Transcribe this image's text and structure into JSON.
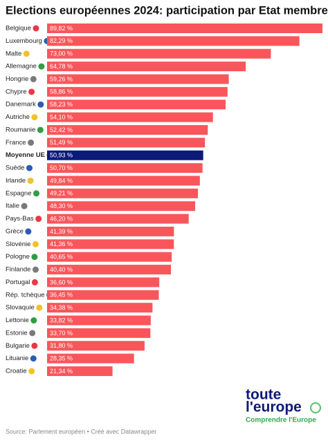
{
  "chart_data": {
    "type": "bar",
    "orientation": "horizontal",
    "title": "Elections européennes 2024: participation par Etat membre",
    "categories": [
      "Belgique",
      "Luxembourg",
      "Malte",
      "Allemagne",
      "Hongrie",
      "Chypre",
      "Danemark",
      "Autriche",
      "Roumanie",
      "France",
      "Moyenne UE",
      "Suède",
      "Irlande",
      "Espagne",
      "Italie",
      "Pays-Bas",
      "Grèce",
      "Slovénie",
      "Pologne",
      "Finlande",
      "Portugal",
      "Rép. tchèque",
      "Slovaquie",
      "Lettonie",
      "Estonie",
      "Bulgarie",
      "Lituanie",
      "Croatie"
    ],
    "values": [
      89.82,
      82.29,
      73.0,
      64.78,
      59.26,
      58.86,
      58.23,
      54.1,
      52.42,
      51.49,
      50.93,
      50.7,
      49.84,
      49.21,
      48.3,
      46.2,
      41.39,
      41.36,
      40.65,
      40.4,
      36.6,
      36.45,
      34.38,
      33.82,
      33.7,
      31.8,
      28.35,
      21.34
    ],
    "value_labels": [
      "89,82 %",
      "82,29 %",
      "73,00 %",
      "64,78 %",
      "59,26 %",
      "58,86 %",
      "58,23 %",
      "54,10 %",
      "52,42 %",
      "51,49 %",
      "50,93 %",
      "50,70 %",
      "49,84 %",
      "49,21 %",
      "48,30 %",
      "46,20 %",
      "41,39 %",
      "41,36 %",
      "40,65 %",
      "40,40 %",
      "36,60 %",
      "36,45 %",
      "34,38 %",
      "33,82 %",
      "33,70 %",
      "31,80 %",
      "28,35 %",
      "21,34 %"
    ],
    "color": "#f9565b",
    "highlight_color": "#0c1a7a",
    "highlight": "Moyenne UE",
    "source": "Source: Parlement européen • Créé avec Datawrapper"
  },
  "logo": {
    "line1": "toute",
    "line2": "l'europe",
    "tagline": "Comprendre l'Europe"
  }
}
